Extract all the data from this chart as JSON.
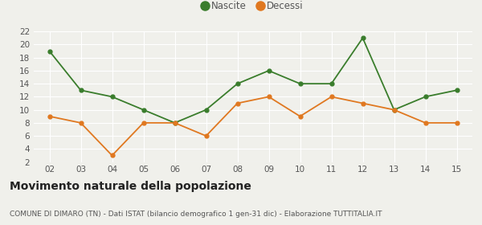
{
  "years": [
    "02",
    "03",
    "04",
    "05",
    "06",
    "07",
    "08",
    "09",
    "10",
    "11",
    "12",
    "13",
    "14",
    "15"
  ],
  "nascite": [
    19,
    13,
    12,
    10,
    8,
    10,
    14,
    16,
    14,
    14,
    21,
    10,
    12,
    13
  ],
  "decessi": [
    9,
    8,
    3,
    8,
    8,
    6,
    11,
    12,
    9,
    12,
    11,
    10,
    8,
    8
  ],
  "nascite_color": "#3a7d2c",
  "decessi_color": "#e07820",
  "bg_color": "#f0f0eb",
  "grid_color": "#ffffff",
  "ylim": [
    2,
    22
  ],
  "yticks": [
    2,
    4,
    6,
    8,
    10,
    12,
    14,
    16,
    18,
    20,
    22
  ],
  "title": "Movimento naturale della popolazione",
  "subtitle": "COMUNE DI DIMARO (TN) - Dati ISTAT (bilancio demografico 1 gen-31 dic) - Elaborazione TUTTITALIA.IT",
  "legend_nascite": "Nascite",
  "legend_decessi": "Decessi",
  "title_fontsize": 10,
  "subtitle_fontsize": 6.5,
  "tick_fontsize": 7.5,
  "legend_fontsize": 8.5
}
